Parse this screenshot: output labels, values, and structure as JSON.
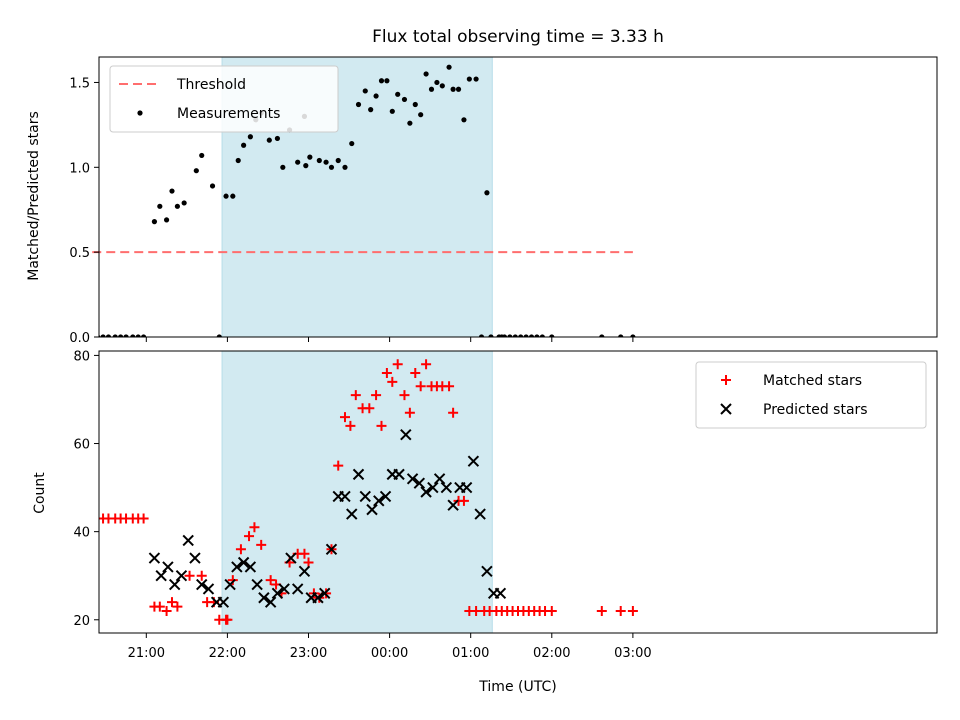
{
  "chart_data": [
    {
      "type": "scatter",
      "title": "Flux total observing time = 3.33 h",
      "xlabel": "",
      "ylabel": "Matched/Predicted stars",
      "ylim": [
        0,
        1.65
      ],
      "yticks": [
        0.0,
        0.5,
        1.0,
        1.5
      ],
      "ytick_labels": [
        "0.0",
        "0.5",
        "1.0",
        "1.5"
      ],
      "grid": false,
      "legend_position": "top-left",
      "shaded_interval": {
        "from": "21:56",
        "to": "01:16",
        "color": "#add8e6"
      },
      "threshold": {
        "name": "Threshold",
        "value": 0.5,
        "from": "20:20",
        "to": "03:00",
        "color": "#ff6e6e"
      },
      "series": [
        {
          "name": "Measurements",
          "color": "#000000",
          "marker": "dot",
          "x": [
            "20:20",
            "20:24",
            "20:28",
            "20:32",
            "20:37",
            "20:41",
            "20:45",
            "20:50",
            "20:54",
            "20:58",
            "21:06",
            "21:10",
            "21:15",
            "21:19",
            "21:23",
            "21:28",
            "21:37",
            "21:41",
            "21:49",
            "21:54",
            "21:59",
            "22:04",
            "22:08",
            "22:12",
            "22:17",
            "22:21",
            "22:25",
            "22:31",
            "22:37",
            "22:41",
            "22:46",
            "22:52",
            "22:57",
            "23:01",
            "22:58",
            "23:08",
            "23:13",
            "23:17",
            "23:22",
            "23:27",
            "23:32",
            "23:37",
            "23:42",
            "23:46",
            "23:50",
            "23:54",
            "23:58",
            "00:02",
            "00:06",
            "00:11",
            "00:15",
            "00:19",
            "00:23",
            "00:27",
            "00:31",
            "00:35",
            "00:39",
            "00:44",
            "00:47",
            "00:51",
            "00:55",
            "00:59",
            "01:04",
            "01:08",
            "01:12",
            "01:15",
            "01:21",
            "01:23",
            "01:25",
            "01:29",
            "01:33",
            "01:37",
            "01:41",
            "01:45",
            "01:49",
            "01:53",
            "02:00",
            "02:37",
            "02:51",
            "03:00"
          ],
          "y": [
            0,
            0,
            0,
            0,
            0,
            0,
            0,
            0,
            0,
            0,
            0.68,
            0.77,
            0.69,
            0.86,
            0.77,
            0.79,
            0.98,
            1.07,
            0.89,
            0.0,
            0.83,
            0.83,
            1.04,
            1.13,
            1.18,
            1.28,
            1.32,
            1.16,
            1.17,
            1.0,
            1.22,
            1.03,
            1.3,
            1.06,
            1.01,
            1.04,
            1.03,
            1.0,
            1.04,
            1.0,
            1.14,
            1.37,
            1.45,
            1.34,
            1.42,
            1.51,
            1.51,
            1.33,
            1.43,
            1.4,
            1.26,
            1.37,
            1.31,
            1.55,
            1.46,
            1.5,
            1.48,
            1.59,
            1.46,
            1.46,
            1.28,
            1.52,
            1.52,
            0.0,
            0.85,
            0.0,
            0.0,
            0.0,
            0.0,
            0.0,
            0.0,
            0.0,
            0.0,
            0.0,
            0.0,
            0.0,
            0.0,
            0.0,
            0.0,
            0.0
          ]
        }
      ],
      "legend": [
        "Threshold",
        "Measurements"
      ]
    },
    {
      "type": "scatter",
      "title": "",
      "xlabel": "Time (UTC)",
      "ylabel": "Count",
      "ylim": [
        17,
        81
      ],
      "yticks": [
        20,
        40,
        60,
        80
      ],
      "ytick_labels": [
        "20",
        "40",
        "60",
        "80"
      ],
      "xticks": [
        "21:00",
        "22:00",
        "23:00",
        "00:00",
        "01:00",
        "02:00",
        "03:00"
      ],
      "grid": false,
      "legend_position": "top-right",
      "shaded_interval": {
        "from": "21:56",
        "to": "01:16",
        "color": "#add8e6"
      },
      "series": [
        {
          "name": "Matched stars",
          "color": "#ff0000",
          "marker": "plus",
          "x": [
            "20:20",
            "20:24",
            "20:28",
            "20:32",
            "20:37",
            "20:41",
            "20:45",
            "20:50",
            "20:54",
            "20:58",
            "21:06",
            "21:10",
            "21:15",
            "21:19",
            "21:23",
            "21:32",
            "21:41",
            "21:45",
            "21:50",
            "21:54",
            "21:59",
            "22:00",
            "22:04",
            "22:10",
            "22:16",
            "22:20",
            "22:25",
            "22:32",
            "22:36",
            "22:40",
            "22:46",
            "22:52",
            "22:57",
            "23:00",
            "23:04",
            "23:08",
            "23:13",
            "23:17",
            "23:22",
            "23:27",
            "23:31",
            "23:35",
            "23:40",
            "23:45",
            "23:50",
            "23:54",
            "23:58",
            "00:02",
            "00:06",
            "00:11",
            "00:15",
            "00:19",
            "00:23",
            "00:27",
            "00:31",
            "00:35",
            "00:39",
            "00:44",
            "00:47",
            "00:51",
            "00:55",
            "00:59",
            "01:04",
            "01:10",
            "01:14",
            "01:19",
            "01:23",
            "01:27",
            "01:31",
            "01:35",
            "01:39",
            "01:43",
            "01:47",
            "01:51",
            "01:55",
            "02:00",
            "02:37",
            "02:51",
            "03:00"
          ],
          "y": [
            43,
            43,
            43,
            43,
            43,
            43,
            43,
            43,
            43,
            43,
            23,
            23,
            22,
            24,
            23,
            30,
            30,
            24,
            24,
            20,
            20,
            20,
            29,
            36,
            39,
            41,
            37,
            29,
            28,
            26,
            33,
            35,
            35,
            33,
            26,
            25,
            26,
            36,
            55,
            66,
            64,
            71,
            68,
            68,
            71,
            64,
            76,
            74,
            78,
            71,
            67,
            76,
            73,
            78,
            73,
            73,
            73,
            73,
            67,
            47,
            47,
            22,
            22,
            22,
            22,
            22,
            22,
            22,
            22,
            22,
            22,
            22,
            22,
            22,
            22,
            22,
            22,
            22,
            22
          ],
          "note": ""
        },
        {
          "name": "Predicted stars",
          "color": "#000000",
          "marker": "x",
          "x": [
            "21:06",
            "21:11",
            "21:16",
            "21:21",
            "21:26",
            "21:31",
            "21:36",
            "21:41",
            "21:46",
            "21:52",
            "21:57",
            "22:02",
            "22:07",
            "22:12",
            "22:17",
            "22:22",
            "22:27",
            "22:32",
            "22:37",
            "22:42",
            "22:47",
            "22:52",
            "22:57",
            "23:02",
            "23:07",
            "23:12",
            "23:17",
            "23:22",
            "23:27",
            "23:32",
            "23:37",
            "23:42",
            "23:47",
            "23:52",
            "23:57",
            "00:02",
            "00:07",
            "00:12",
            "00:17",
            "00:22",
            "00:27",
            "00:32",
            "00:37",
            "00:42",
            "00:47",
            "00:52",
            "00:57",
            "01:02",
            "01:07",
            "01:12",
            "01:17",
            "01:22"
          ],
          "y": [
            34,
            30,
            32,
            28,
            30,
            38,
            34,
            28,
            27,
            24,
            24,
            28,
            32,
            33,
            32,
            28,
            25,
            24,
            26,
            27,
            34,
            27,
            31,
            25,
            25,
            26,
            36,
            48,
            48,
            44,
            53,
            48,
            45,
            47,
            48,
            53,
            53,
            62,
            52,
            51,
            49,
            50,
            52,
            50,
            46,
            50,
            50,
            56,
            44,
            31,
            26,
            26
          ]
        }
      ],
      "legend": [
        "Matched stars",
        "Predicted stars"
      ]
    }
  ]
}
